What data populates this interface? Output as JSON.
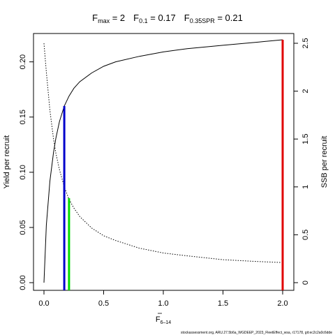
{
  "colors": {
    "curve": "#000000",
    "fmax_line": "#e00000",
    "f01_line": "#0000cc",
    "f035spr_line": "#00dd00"
  },
  "chart_data": {
    "type": "line",
    "title_parts": {
      "fmax_main": "F",
      "fmax_sub": "max",
      "fmax_value": " = 2",
      "f01_main": "F",
      "f01_sub": "0.1",
      "f01_value": " = 0.17",
      "f035_main": "F",
      "f035_sub": "0.35SPR",
      "f035_value": " = 0.21"
    },
    "xlabel_main": "F",
    "xlabel_sub": "6–14",
    "ylabel": "Yield per recruit",
    "y2label": "SSB per recruit",
    "xlim": [
      0,
      2
    ],
    "ylim": [
      0,
      0.22
    ],
    "y2lim": [
      0,
      2.5
    ],
    "x_ticks": [
      "0.0",
      "0.5",
      "1.0",
      "1.5",
      "2.0"
    ],
    "x_tick_values": [
      0,
      0.5,
      1.0,
      1.5,
      2.0
    ],
    "y_ticks": [
      "0.00",
      "0.05",
      "0.10",
      "0.15",
      "0.20"
    ],
    "y_tick_values": [
      0,
      0.05,
      0.1,
      0.15,
      0.2
    ],
    "y2_ticks": [
      "0",
      "0.5",
      "1",
      "1.5",
      "2",
      "2.5"
    ],
    "y2_tick_values": [
      0,
      0.5,
      1,
      1.5,
      2,
      2.5
    ],
    "series": [
      {
        "axis": "left",
        "style": "solid",
        "x": [
          0,
          0.02,
          0.05,
          0.08,
          0.1,
          0.13,
          0.17,
          0.21,
          0.25,
          0.3,
          0.4,
          0.5,
          0.6,
          0.8,
          1.0,
          1.2,
          1.5,
          1.8,
          2.0
        ],
        "y": [
          0,
          0.052,
          0.092,
          0.118,
          0.131,
          0.146,
          0.16,
          0.169,
          0.176,
          0.182,
          0.19,
          0.196,
          0.2,
          0.205,
          0.209,
          0.212,
          0.215,
          0.218,
          0.22
        ]
      },
      {
        "axis": "right",
        "style": "dotted",
        "x": [
          0,
          0.02,
          0.05,
          0.08,
          0.1,
          0.13,
          0.17,
          0.21,
          0.25,
          0.3,
          0.4,
          0.5,
          0.6,
          0.8,
          1.0,
          1.2,
          1.5,
          1.8,
          2.0
        ],
        "y": [
          2.5,
          2.2,
          1.8,
          1.5,
          1.35,
          1.18,
          1.0,
          0.87,
          0.78,
          0.69,
          0.57,
          0.49,
          0.44,
          0.36,
          0.31,
          0.28,
          0.24,
          0.22,
          0.21
        ]
      }
    ],
    "reference_lines": [
      {
        "label": "Fmax",
        "x": 2.0,
        "y_top": 0.22,
        "color": "#e00000"
      },
      {
        "label": "F0.1",
        "x": 0.17,
        "y_top": 0.16,
        "color": "#0000cc"
      },
      {
        "label": "F0.35SPR",
        "x": 0.21,
        "y_top": 0.0765,
        "color": "#00dd00"
      }
    ],
    "grid": false,
    "legend": "none"
  },
  "footer": "stockassessment.org, ARU.27.5b6a_WGDEEP_2023_FleetEffect_wsa, r17178, git:ec2c2a0c6dde"
}
